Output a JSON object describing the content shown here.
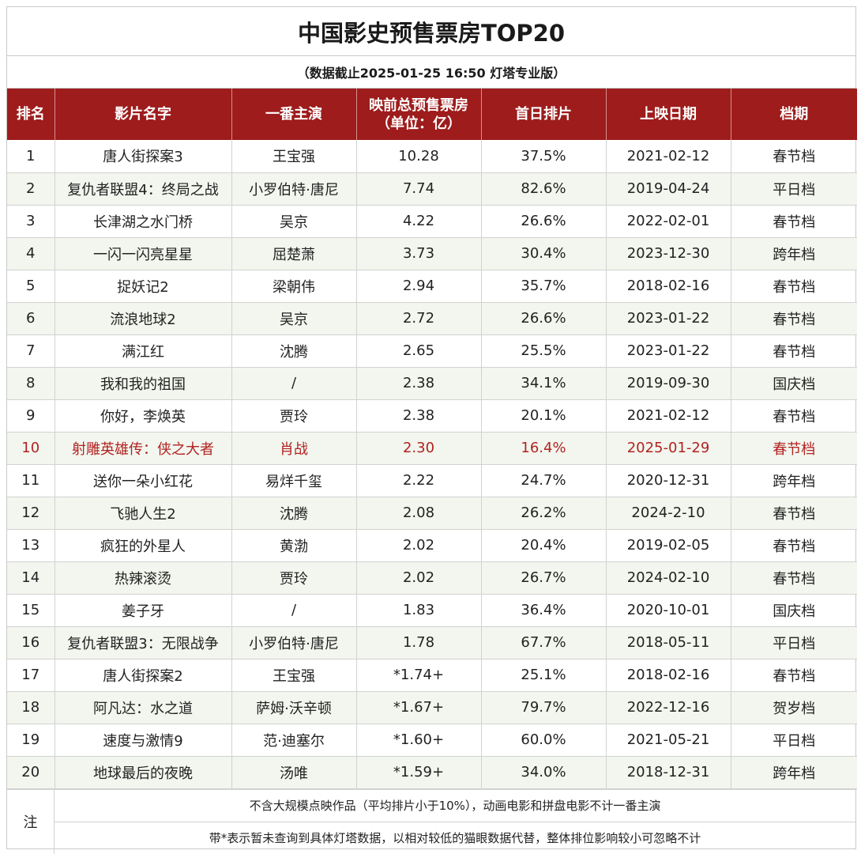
{
  "title": "中国影史预售票房TOP20",
  "subtitle": "（数据截止2025-01-25 16:50 灯塔专业版）",
  "headers": {
    "rank": "排名",
    "film": "影片名字",
    "lead": "一番主演",
    "presale_line1": "映前总预售票房",
    "presale_line2": "（单位：亿）",
    "first_day_share": "首日排片",
    "release_date": "上映日期",
    "season": "档期"
  },
  "rows": [
    {
      "rank": "1",
      "film": "唐人街探案3",
      "lead": "王宝强",
      "presale": "10.28",
      "share": "37.5%",
      "date": "2021-02-12",
      "season": "春节档"
    },
    {
      "rank": "2",
      "film": "复仇者联盟4：终局之战",
      "lead": "小罗伯特·唐尼",
      "presale": "7.74",
      "share": "82.6%",
      "date": "2019-04-24",
      "season": "平日档"
    },
    {
      "rank": "3",
      "film": "长津湖之水门桥",
      "lead": "吴京",
      "presale": "4.22",
      "share": "26.6%",
      "date": "2022-02-01",
      "season": "春节档"
    },
    {
      "rank": "4",
      "film": "一闪一闪亮星星",
      "lead": "屈楚萧",
      "presale": "3.73",
      "share": "30.4%",
      "date": "2023-12-30",
      "season": "跨年档"
    },
    {
      "rank": "5",
      "film": "捉妖记2",
      "lead": "梁朝伟",
      "presale": "2.94",
      "share": "35.7%",
      "date": "2018-02-16",
      "season": "春节档"
    },
    {
      "rank": "6",
      "film": "流浪地球2",
      "lead": "吴京",
      "presale": "2.72",
      "share": "26.6%",
      "date": "2023-01-22",
      "season": "春节档"
    },
    {
      "rank": "7",
      "film": "满江红",
      "lead": "沈腾",
      "presale": "2.65",
      "share": "25.5%",
      "date": "2023-01-22",
      "season": "春节档"
    },
    {
      "rank": "8",
      "film": "我和我的祖国",
      "lead": "/",
      "presale": "2.38",
      "share": "34.1%",
      "date": "2019-09-30",
      "season": "国庆档"
    },
    {
      "rank": "9",
      "film": "你好，李焕英",
      "lead": "贾玲",
      "presale": "2.38",
      "share": "20.1%",
      "date": "2021-02-12",
      "season": "春节档"
    },
    {
      "rank": "10",
      "film": "射雕英雄传：侠之大者",
      "lead": "肖战",
      "presale": "2.30",
      "share": "16.4%",
      "date": "2025-01-29",
      "season": "春节档"
    },
    {
      "rank": "11",
      "film": "送你一朵小红花",
      "lead": "易烊千玺",
      "presale": "2.22",
      "share": "24.7%",
      "date": "2020-12-31",
      "season": "跨年档"
    },
    {
      "rank": "12",
      "film": "飞驰人生2",
      "lead": "沈腾",
      "presale": "2.08",
      "share": "26.2%",
      "date": "2024-2-10",
      "season": "春节档"
    },
    {
      "rank": "13",
      "film": "疯狂的外星人",
      "lead": "黄渤",
      "presale": "2.02",
      "share": "20.4%",
      "date": "2019-02-05",
      "season": "春节档"
    },
    {
      "rank": "14",
      "film": "热辣滚烫",
      "lead": "贾玲",
      "presale": "2.02",
      "share": "26.7%",
      "date": "2024-02-10",
      "season": "春节档"
    },
    {
      "rank": "15",
      "film": "姜子牙",
      "lead": "/",
      "presale": "1.83",
      "share": "36.4%",
      "date": "2020-10-01",
      "season": "国庆档"
    },
    {
      "rank": "16",
      "film": "复仇者联盟3：无限战争",
      "lead": "小罗伯特·唐尼",
      "presale": "1.78",
      "share": "67.7%",
      "date": "2018-05-11",
      "season": "平日档"
    },
    {
      "rank": "17",
      "film": "唐人街探案2",
      "lead": "王宝强",
      "presale": "*1.74+",
      "share": "25.1%",
      "date": "2018-02-16",
      "season": "春节档"
    },
    {
      "rank": "18",
      "film": "阿凡达：水之道",
      "lead": "萨姆·沃辛顿",
      "presale": "*1.67+",
      "share": "79.7%",
      "date": "2022-12-16",
      "season": "贺岁档"
    },
    {
      "rank": "19",
      "film": "速度与激情9",
      "lead": "范·迪塞尔",
      "presale": "*1.60+",
      "share": "60.0%",
      "date": "2021-05-21",
      "season": "平日档"
    },
    {
      "rank": "20",
      "film": "地球最后的夜晚",
      "lead": "汤唯",
      "presale": "*1.59+",
      "share": "34.0%",
      "date": "2018-12-31",
      "season": "跨年档"
    }
  ],
  "highlight_rank": "10",
  "colors": {
    "header_bg": "#9e1c1c",
    "header_text": "#ffffff",
    "highlight_text": "#b22222",
    "alt_row_bg": "#f2f6ee"
  },
  "notes": {
    "label": "注",
    "line1": "不含大规模点映作品（平均排片小于10%），动画电影和拼盘电影不计一番主演",
    "line2": "带*表示暂未查询到具体灯塔数据，以相对较低的猫眼数据代替，整体排位影响较小可忽略不计"
  }
}
